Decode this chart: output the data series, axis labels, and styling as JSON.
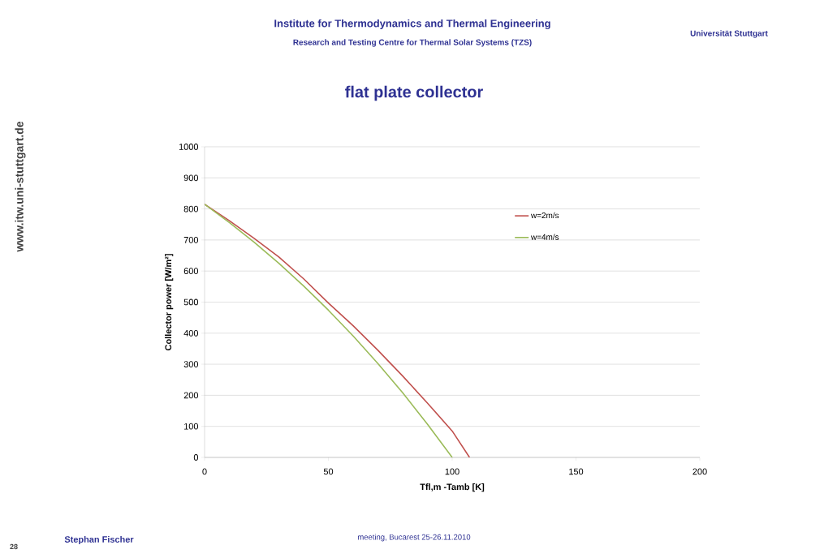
{
  "chart_data": {
    "type": "line",
    "title": "flat plate collector",
    "xlabel": "Tfl,m -Tamb [K]",
    "ylabel": "Collector power [W/m²]",
    "xlim": [
      0,
      200
    ],
    "xticks": [
      0,
      50,
      100,
      150,
      200
    ],
    "ylim": [
      0,
      1000
    ],
    "yticks": [
      0,
      100,
      200,
      300,
      400,
      500,
      600,
      700,
      800,
      900,
      1000
    ],
    "grid": "y",
    "legend": "right",
    "marker": "none",
    "line_style": "solid",
    "series": [
      {
        "name": "w=2m/s",
        "color": "#c0504d",
        "x": [
          0,
          10,
          20,
          30,
          40,
          50,
          60,
          70,
          80,
          90,
          100,
          107
        ],
        "values": [
          815,
          762,
          705,
          645,
          575,
          497,
          424,
          345,
          262,
          175,
          85,
          0
        ]
      },
      {
        "name": "w=4m/s",
        "color": "#9bbb59",
        "x": [
          0,
          10,
          20,
          30,
          40,
          50,
          60,
          70,
          80,
          90,
          100
        ],
        "values": [
          815,
          756,
          693,
          625,
          552,
          474,
          391,
          302,
          208,
          107,
          0
        ]
      }
    ],
    "annotations": [
      "Institute for Thermodynamics and Thermal Engineering",
      "Research and Testing Centre for Thermal Solar Systems (TZS)",
      "Universität Stuttgart",
      "www.itw.uni-stuttgart.de",
      "Stephan Fischer",
      "meeting, Bucarest 25-26.11.2010",
      "28"
    ]
  }
}
